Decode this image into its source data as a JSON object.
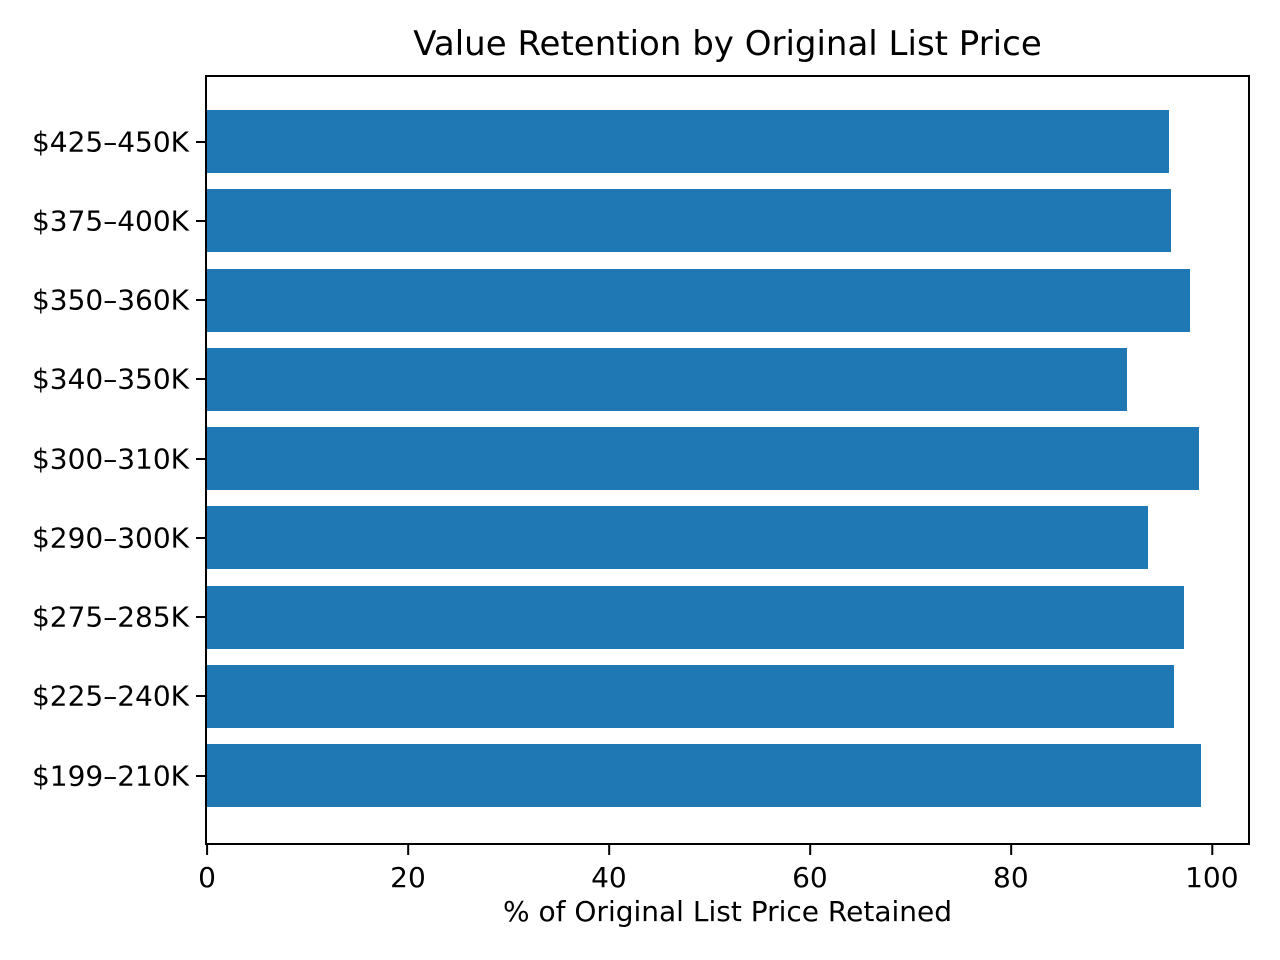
{
  "chart_data": {
    "type": "bar",
    "orientation": "horizontal",
    "title": "Value Retention by Original List Price",
    "xlabel": "% of Original List Price Retained",
    "ylabel": "",
    "categories": [
      "$425–450K",
      "$375–400K",
      "$350–360K",
      "$340–350K",
      "$300–310K",
      "$290–300K",
      "$275–285K",
      "$225–240K",
      "$199–210K"
    ],
    "values": [
      95.7,
      95.9,
      97.8,
      91.6,
      98.7,
      93.6,
      97.2,
      96.2,
      98.9
    ],
    "xticks": [
      0,
      20,
      40,
      60,
      80,
      100
    ],
    "xlim": [
      0,
      103.6
    ],
    "bar_color": "#1f77b4",
    "bar_height_fraction": 0.8,
    "grid": false,
    "legend": null,
    "background_color": "#ffffff",
    "frame_color": "#000000"
  }
}
